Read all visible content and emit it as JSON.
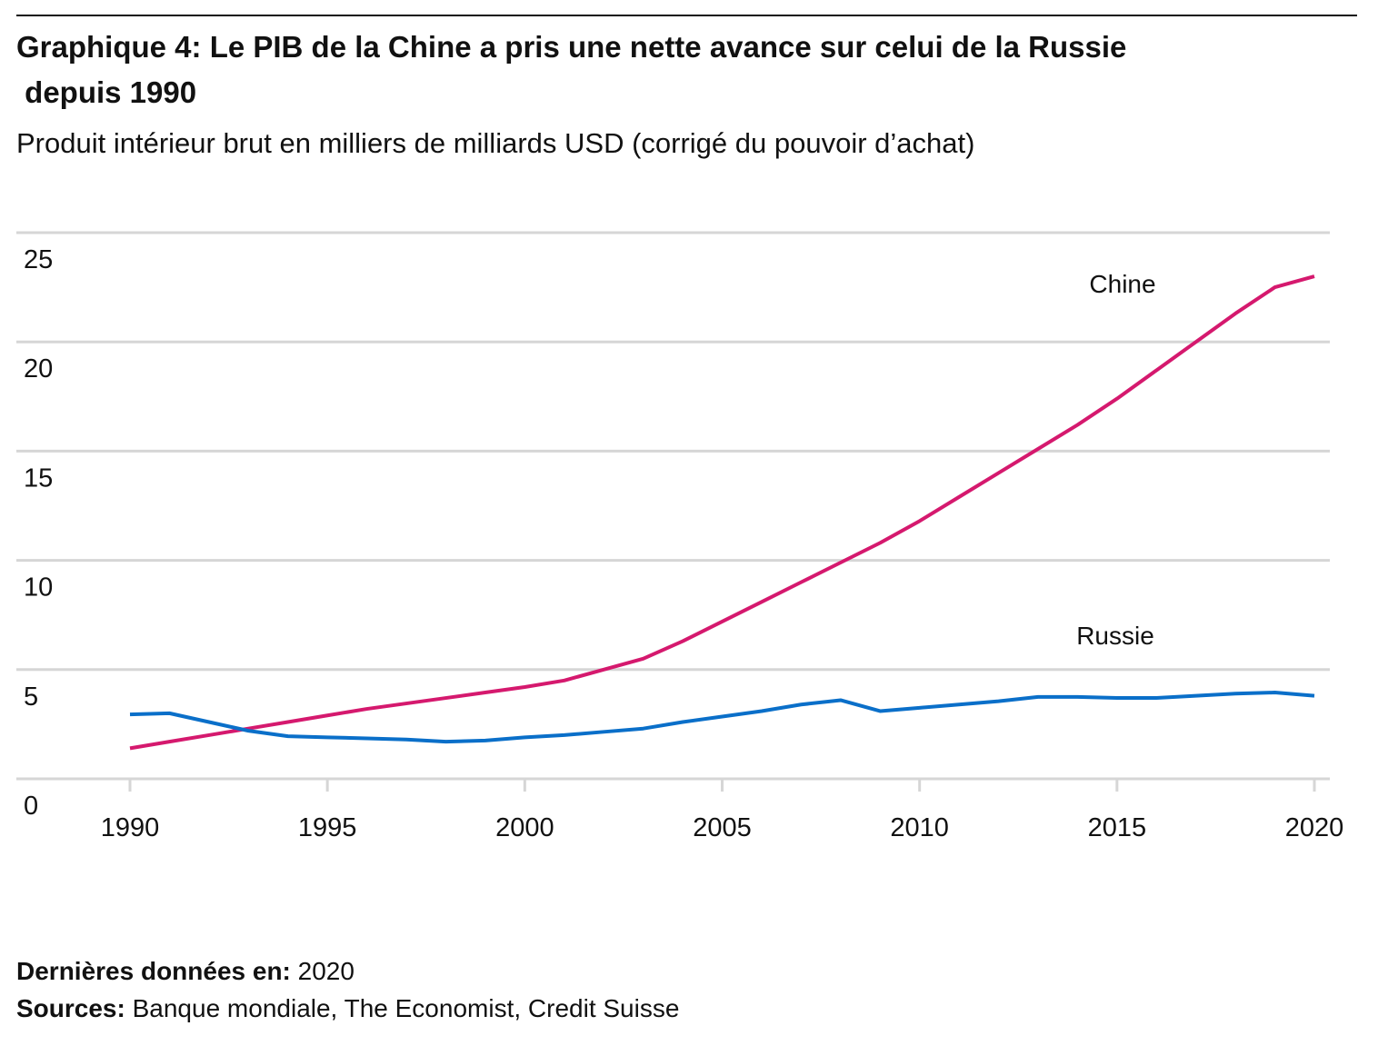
{
  "chart_data": {
    "type": "line",
    "title": "Graphique 4: Le PIB de la Chine a pris une nette avance sur celui de la Russie depuis 1990",
    "subtitle": "Produit intérieur brut en milliers de milliards USD (corrigé du pouvoir d’achat)",
    "x": [
      1990,
      1991,
      1992,
      1993,
      1994,
      1995,
      1996,
      1997,
      1998,
      1999,
      2000,
      2001,
      2002,
      2003,
      2004,
      2005,
      2006,
      2007,
      2008,
      2009,
      2010,
      2011,
      2012,
      2013,
      2014,
      2015,
      2016,
      2017,
      2018,
      2019,
      2020
    ],
    "series": [
      {
        "name": "Chine",
        "color": "#d5196e",
        "values": [
          1.4,
          1.7,
          2.0,
          2.3,
          2.6,
          2.9,
          3.2,
          3.45,
          3.7,
          3.95,
          4.2,
          4.5,
          5.0,
          5.5,
          6.3,
          7.2,
          8.1,
          9.0,
          9.9,
          10.8,
          11.8,
          12.9,
          14.0,
          15.1,
          16.2,
          17.4,
          18.7,
          20.0,
          21.3,
          22.5,
          23.0
        ]
      },
      {
        "name": "Russie",
        "color": "#0a6fc9",
        "values": [
          2.95,
          3.0,
          2.6,
          2.2,
          1.95,
          1.9,
          1.85,
          1.8,
          1.7,
          1.75,
          1.9,
          2.0,
          2.15,
          2.3,
          2.6,
          2.85,
          3.1,
          3.4,
          3.6,
          3.1,
          3.25,
          3.4,
          3.55,
          3.75,
          3.75,
          3.7,
          3.7,
          3.8,
          3.9,
          3.95,
          3.8
        ]
      }
    ],
    "xlim": [
      1990,
      2020
    ],
    "xticks": [
      1990,
      1995,
      2000,
      2005,
      2010,
      2015,
      2020
    ],
    "ylim": [
      0,
      25
    ],
    "yticks": [
      0,
      5,
      10,
      15,
      20,
      25
    ],
    "grid": true,
    "footer": {
      "latest_label": "Dernières données en:",
      "latest_value": "2020",
      "sources_label": "Sources:",
      "sources": "Banque mondiale, The Economist, Credit Suisse"
    }
  }
}
